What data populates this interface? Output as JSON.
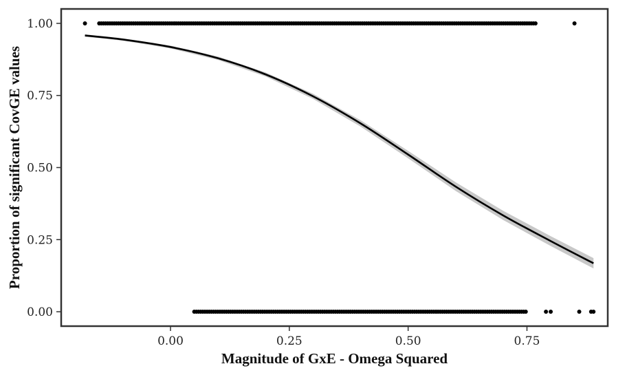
{
  "chart_data": {
    "type": "scatter",
    "xlabel": "Magnitude of GxE - Omega Squared",
    "ylabel": "Proportion of significant CovGE values",
    "xlim": [
      -0.23,
      0.92
    ],
    "ylim": [
      -0.05,
      1.05
    ],
    "x_ticks": [
      0.0,
      0.25,
      0.5,
      0.75
    ],
    "x_tick_labels": [
      "0.00",
      "0.25",
      "0.50",
      "0.75"
    ],
    "y_ticks": [
      0.0,
      0.25,
      0.5,
      0.75,
      1.0
    ],
    "y_tick_labels": [
      "0.00",
      "0.25",
      "0.50",
      "0.75",
      "1.00"
    ],
    "grid": false,
    "points_top": {
      "y": 1.0,
      "x_single": [
        -0.18,
        0.85
      ],
      "x_range": [
        -0.15,
        0.77
      ]
    },
    "points_bottom": {
      "y": 0.0,
      "x_single": [
        0.79,
        0.8,
        0.86,
        0.885,
        0.89
      ],
      "x_range": [
        0.05,
        0.75
      ]
    },
    "fit_curve": {
      "x": [
        -0.18,
        -0.1,
        0.0,
        0.1,
        0.2,
        0.3,
        0.4,
        0.5,
        0.6,
        0.7,
        0.8,
        0.89
      ],
      "y": [
        0.958,
        0.944,
        0.918,
        0.879,
        0.823,
        0.747,
        0.653,
        0.545,
        0.434,
        0.334,
        0.245,
        0.168
      ],
      "ci_half_width": [
        0.004,
        0.004,
        0.005,
        0.006,
        0.007,
        0.009,
        0.011,
        0.013,
        0.015,
        0.016,
        0.017,
        0.018
      ]
    },
    "colors": {
      "points": "#000000",
      "line": "#000000",
      "ribbon": "#c8c8c8",
      "frame": "#333333"
    }
  }
}
